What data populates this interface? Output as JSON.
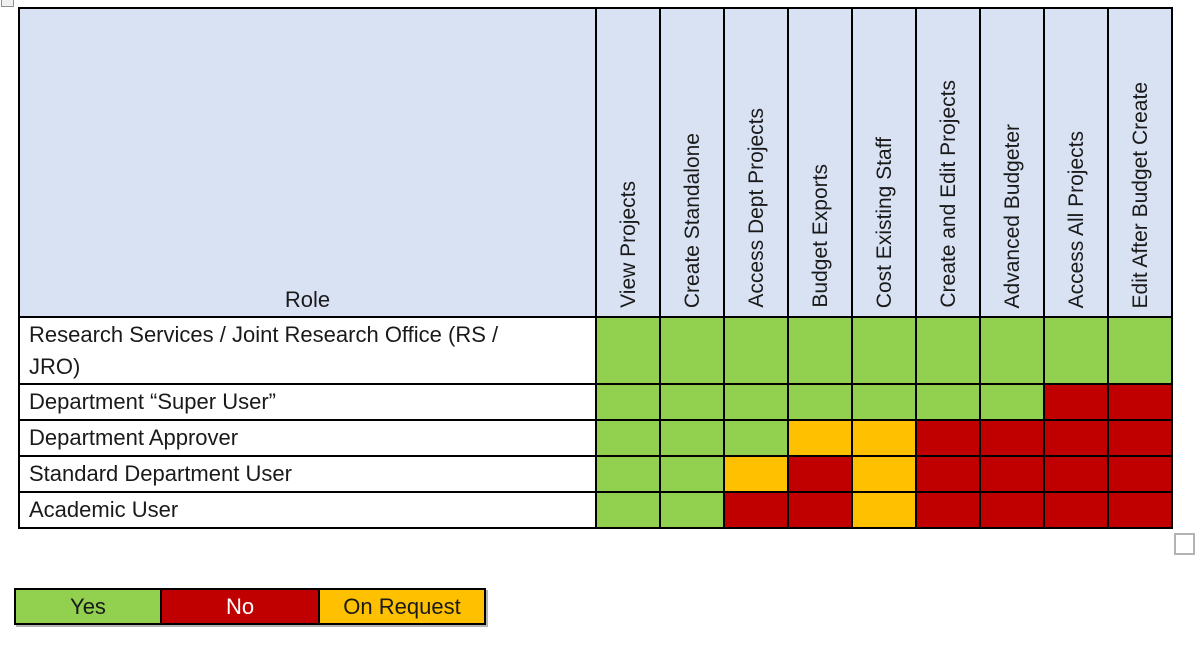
{
  "table": {
    "role_header": "Role",
    "columns": [
      "View Projects",
      "Create Standalone",
      "Access Dept Projects",
      "Budget Exports",
      "Cost Existing Staff",
      "Create and Edit Projects",
      "Advanced Budgeter",
      "Access All Projects",
      "Edit After Budget Create"
    ],
    "rows": [
      {
        "role": "Research Services / Joint Research Office (RS /\nJRO)",
        "values": [
          "yes",
          "yes",
          "yes",
          "yes",
          "yes",
          "yes",
          "yes",
          "yes",
          "yes"
        ]
      },
      {
        "role": "Department “Super User”",
        "values": [
          "yes",
          "yes",
          "yes",
          "yes",
          "yes",
          "yes",
          "yes",
          "no",
          "no"
        ]
      },
      {
        "role": "Department Approver",
        "values": [
          "yes",
          "yes",
          "yes",
          "on_request",
          "on_request",
          "no",
          "no",
          "no",
          "no"
        ]
      },
      {
        "role": "Standard Department User",
        "values": [
          "yes",
          "yes",
          "on_request",
          "no",
          "on_request",
          "no",
          "no",
          "no",
          "no"
        ]
      },
      {
        "role": "Academic User",
        "values": [
          "yes",
          "yes",
          "no",
          "no",
          "on_request",
          "no",
          "no",
          "no",
          "no"
        ]
      }
    ]
  },
  "legend": [
    {
      "key": "yes",
      "label": "Yes"
    },
    {
      "key": "no",
      "label": "No"
    },
    {
      "key": "on_request",
      "label": "On Request"
    }
  ],
  "colors": {
    "yes": "#92d050",
    "no": "#c00000",
    "on_request": "#ffc000",
    "header_bg": "#d9e2f3",
    "legend_no_text": "#ffffff",
    "border": "#000000"
  }
}
